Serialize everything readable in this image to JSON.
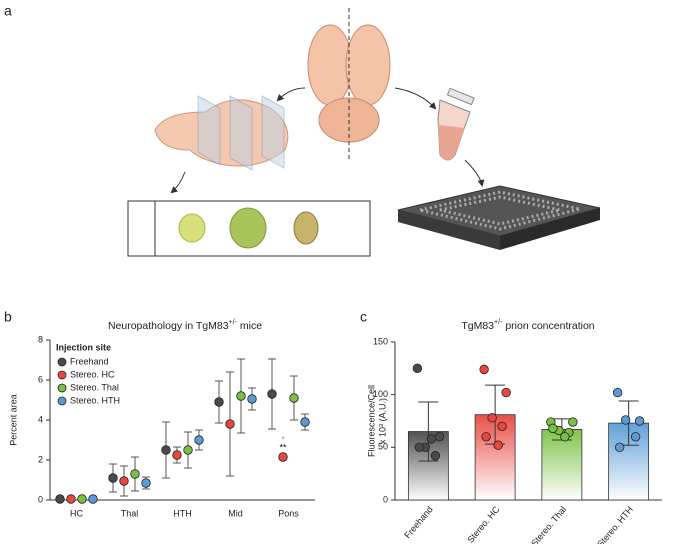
{
  "panel_labels": [
    "a",
    "b",
    "c"
  ],
  "chart_data": [
    {
      "type": "dot",
      "title": {
        "text": "Neuropathology in TgM83",
        "superscript": "+/-",
        "suffix": " mice"
      },
      "y_label": "Percent area",
      "categories": [
        "HC",
        "Thal",
        "HTH",
        "Mid",
        "Pons"
      ],
      "ylim": [
        0,
        8
      ],
      "yticks": [
        0,
        2,
        4,
        6,
        8
      ],
      "legend_title": "Injection site",
      "legend": "top-left",
      "series": [
        {
          "name": "Freehand",
          "color": "#4a4a4a",
          "values": [
            0.05,
            1.1,
            2.5,
            4.9,
            5.3
          ],
          "errors": [
            0,
            0.7,
            1.4,
            1.05,
            1.75
          ]
        },
        {
          "name": "Stereo. HC",
          "color": "#e8473f",
          "values": [
            0.05,
            0.95,
            2.25,
            3.8,
            2.15
          ],
          "errors": [
            0,
            0.75,
            0.4,
            2.6,
            0
          ]
        },
        {
          "name": "Stereo. Thal",
          "color": "#7ac143",
          "values": [
            0.05,
            1.3,
            2.5,
            5.2,
            5.1
          ],
          "errors": [
            0,
            0.85,
            0.9,
            1.85,
            1.1
          ]
        },
        {
          "name": "Stereo. HTH",
          "color": "#5b9bd5",
          "values": [
            0.05,
            0.85,
            3.0,
            5.05,
            3.9
          ],
          "errors": [
            0,
            0.3,
            0.5,
            0.55,
            0.4
          ]
        }
      ],
      "annotations": [
        {
          "text": "*",
          "color": "#7ac143"
        },
        {
          "text": "**",
          "color": "#111111"
        }
      ]
    },
    {
      "type": "bar",
      "title": {
        "text": "TgM83",
        "superscript": "+/-",
        "suffix": " prion concentration"
      },
      "y_label": [
        "Fluorescence/Cell",
        "x 10³ (A.U.)"
      ],
      "categories": [
        "Freehand",
        "Stereo. HC",
        "Stereo. Thal",
        "Stereo. HTH"
      ],
      "colors": [
        "#4a4a4a",
        "#e8473f",
        "#7ac143",
        "#5b9bd5"
      ],
      "ylim": [
        0,
        150
      ],
      "yticks": [
        0,
        50,
        100,
        150
      ],
      "values": [
        65,
        81,
        67,
        73
      ],
      "errors": [
        28,
        28,
        10,
        21
      ],
      "points": [
        [
          125,
          60,
          50,
          42,
          50,
          58
        ],
        [
          124,
          102,
          78,
          70,
          60,
          52
        ],
        [
          74,
          74,
          66,
          64,
          68,
          60
        ],
        [
          102,
          75,
          76,
          60,
          50
        ]
      ]
    }
  ]
}
